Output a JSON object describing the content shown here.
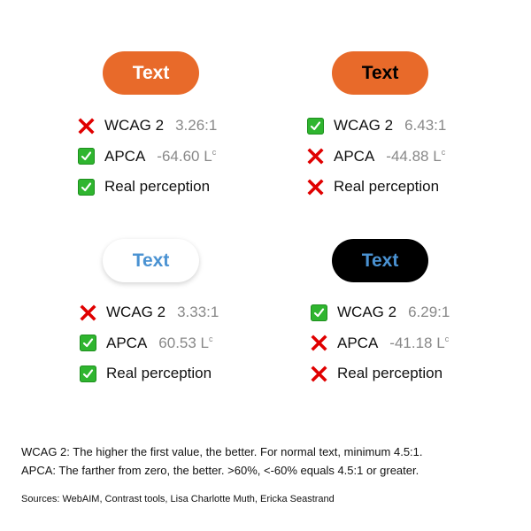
{
  "colors": {
    "orange": "#E86A2A",
    "blue_text": "#4A92D2",
    "pass": "#2FB52F",
    "fail": "#E00000",
    "value_gray": "#888888"
  },
  "cards": [
    {
      "pill_text": "Text",
      "pill_bg": "#E86A2A",
      "pill_fg": "#FFFFFF",
      "rows": [
        {
          "status": "fail",
          "label": "WCAG 2",
          "value": "3.26:1",
          "unit": ""
        },
        {
          "status": "pass",
          "label": "APCA",
          "value": "-64.60 L",
          "unit": "c"
        },
        {
          "status": "pass",
          "label": "Real perception",
          "value": "",
          "unit": ""
        }
      ]
    },
    {
      "pill_text": "Text",
      "pill_bg": "#E86A2A",
      "pill_fg": "#000000",
      "rows": [
        {
          "status": "pass",
          "label": "WCAG 2",
          "value": "6.43:1",
          "unit": ""
        },
        {
          "status": "fail",
          "label": "APCA",
          "value": "-44.88 L",
          "unit": "c"
        },
        {
          "status": "fail",
          "label": "Real perception",
          "value": "",
          "unit": ""
        }
      ]
    },
    {
      "pill_text": "Text",
      "pill_bg": "#FFFFFF",
      "pill_fg": "#4A92D2",
      "rows": [
        {
          "status": "fail",
          "label": "WCAG 2",
          "value": "3.33:1",
          "unit": ""
        },
        {
          "status": "pass",
          "label": "APCA",
          "value": "60.53 L",
          "unit": "c"
        },
        {
          "status": "pass",
          "label": "Real perception",
          "value": "",
          "unit": ""
        }
      ]
    },
    {
      "pill_text": "Text",
      "pill_bg": "#000000",
      "pill_fg": "#4A92D2",
      "rows": [
        {
          "status": "pass",
          "label": "WCAG 2",
          "value": "6.29:1",
          "unit": ""
        },
        {
          "status": "fail",
          "label": "APCA",
          "value": "-41.18 L",
          "unit": "c"
        },
        {
          "status": "fail",
          "label": "Real perception",
          "value": "",
          "unit": ""
        }
      ]
    }
  ],
  "footer": {
    "line1": "WCAG 2: The higher the first value, the better. For normal text, minimum 4.5:1.",
    "line2": "APCA: The farther from zero, the better. >60%, <-60% equals 4.5:1 or greater.",
    "sources": "Sources: WebAIM, Contrast tools, Lisa Charlotte Muth, Ericka Seastrand"
  }
}
